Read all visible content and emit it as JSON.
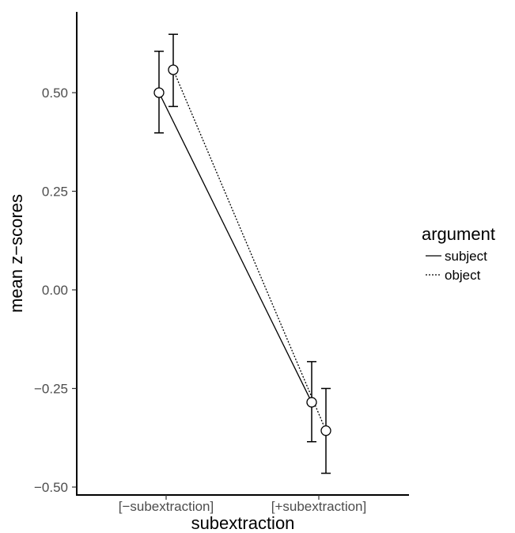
{
  "chart_data": {
    "type": "line",
    "categories": [
      "[−subextraction]",
      "[+subextraction]"
    ],
    "xlabel": "subextraction",
    "ylabel": "mean z−scores",
    "ylim": [
      -0.52,
      0.7
    ],
    "yticks": [
      0.5,
      0.25,
      0.0,
      -0.25,
      -0.5
    ],
    "ytick_labels": [
      "0.50",
      "0.25",
      "0.00",
      "−0.25",
      "−0.50"
    ],
    "grid": false,
    "legend": {
      "title": "argument",
      "placement": "right",
      "entries": [
        {
          "label": "subject",
          "linestyle": "solid"
        },
        {
          "label": "object",
          "linestyle": "dotted"
        }
      ]
    },
    "series": [
      {
        "name": "subject",
        "linestyle": "solid",
        "values": [
          0.5,
          -0.285
        ],
        "error_low": [
          0.398,
          -0.385
        ],
        "error_high": [
          0.605,
          -0.182
        ]
      },
      {
        "name": "object",
        "linestyle": "dotted",
        "values": [
          0.558,
          -0.357
        ],
        "error_low": [
          0.465,
          -0.465
        ],
        "error_high": [
          0.648,
          -0.25
        ]
      }
    ],
    "colors": {
      "line": "#000000",
      "marker_fill": "#ffffff",
      "tick_text": "#4d4d4d"
    }
  }
}
